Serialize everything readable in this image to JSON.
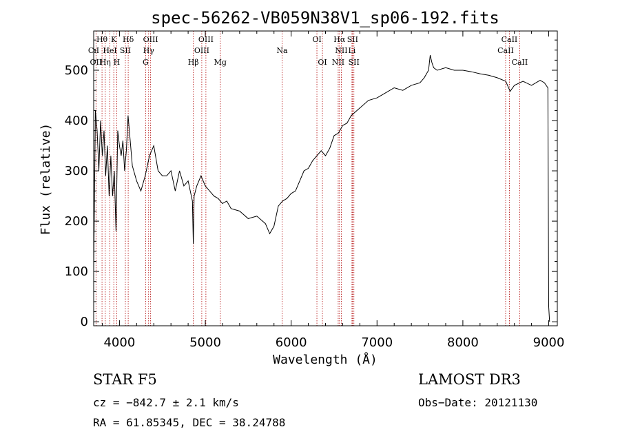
{
  "chart_data": {
    "type": "line",
    "title": "spec-56262-VB059N38V1_sp06-192.fits",
    "xlabel": "Wavelength (Å)",
    "ylabel": "Flux (relative)",
    "xlim": [
      3700,
      9100
    ],
    "ylim": [
      -8,
      578
    ],
    "xticks": [
      4000,
      5000,
      6000,
      7000,
      8000,
      9000
    ],
    "yticks": [
      0,
      100,
      200,
      300,
      400,
      500
    ],
    "series": [
      {
        "name": "spectrum",
        "x": [
          3700,
          3720,
          3740,
          3760,
          3780,
          3800,
          3820,
          3840,
          3860,
          3880,
          3900,
          3920,
          3940,
          3960,
          3980,
          4000,
          4020,
          4040,
          4060,
          4080,
          4100,
          4150,
          4200,
          4250,
          4300,
          4350,
          4400,
          4450,
          4500,
          4550,
          4600,
          4650,
          4700,
          4750,
          4800,
          4850,
          4860,
          4870,
          4900,
          4950,
          5000,
          5050,
          5100,
          5150,
          5200,
          5250,
          5300,
          5400,
          5500,
          5600,
          5700,
          5750,
          5800,
          5850,
          5900,
          5950,
          6000,
          6050,
          6100,
          6150,
          6200,
          6250,
          6300,
          6350,
          6400,
          6450,
          6500,
          6550,
          6600,
          6650,
          6700,
          6800,
          6900,
          7000,
          7100,
          7200,
          7300,
          7400,
          7500,
          7550,
          7600,
          7620,
          7640,
          7660,
          7700,
          7800,
          7900,
          8000,
          8100,
          8200,
          8300,
          8400,
          8500,
          8550,
          8600,
          8700,
          8800,
          8900,
          8950,
          8990,
          9000,
          9010
        ],
        "y": [
          100,
          420,
          380,
          300,
          400,
          330,
          380,
          290,
          350,
          250,
          330,
          250,
          300,
          180,
          380,
          350,
          330,
          360,
          300,
          340,
          410,
          310,
          280,
          260,
          290,
          330,
          350,
          300,
          290,
          290,
          300,
          260,
          300,
          270,
          280,
          240,
          155,
          250,
          270,
          290,
          270,
          260,
          250,
          245,
          235,
          240,
          225,
          220,
          205,
          210,
          195,
          175,
          190,
          230,
          240,
          245,
          255,
          260,
          280,
          300,
          305,
          320,
          330,
          340,
          330,
          345,
          370,
          375,
          390,
          395,
          410,
          425,
          440,
          445,
          455,
          465,
          460,
          470,
          475,
          485,
          500,
          530,
          515,
          505,
          500,
          505,
          500,
          500,
          497,
          493,
          490,
          485,
          478,
          458,
          470,
          478,
          470,
          480,
          475,
          465,
          30,
          0
        ]
      }
    ],
    "line_labels": [
      {
        "text": "CıI",
        "wavelength": 3700,
        "row": 2
      },
      {
        "text": "OII",
        "wavelength": 3727,
        "row": 3
      },
      {
        "text": "Hθ",
        "wavelength": 3797,
        "row": 1
      },
      {
        "text": "Hη",
        "wavelength": 3835,
        "row": 3
      },
      {
        "text": "HeI",
        "wavelength": 3889,
        "row": 2
      },
      {
        "text": "K",
        "wavelength": 3934,
        "row": 1
      },
      {
        "text": "H",
        "wavelength": 3968,
        "row": 3
      },
      {
        "text": "SII",
        "wavelength": 4069,
        "row": 2
      },
      {
        "text": "Hδ",
        "wavelength": 4102,
        "row": 1
      },
      {
        "text": "G",
        "wavelength": 4305,
        "row": 3
      },
      {
        "text": "Hγ",
        "wavelength": 4340,
        "row": 2
      },
      {
        "text": "OIII",
        "wavelength": 4363,
        "row": 1
      },
      {
        "text": "Hβ",
        "wavelength": 4861,
        "row": 3
      },
      {
        "text": "OIII",
        "wavelength": 4959,
        "row": 2
      },
      {
        "text": "OIII",
        "wavelength": 5007,
        "row": 1
      },
      {
        "text": "Mg",
        "wavelength": 5175,
        "row": 3
      },
      {
        "text": "Na",
        "wavelength": 5894,
        "row": 2
      },
      {
        "text": "OI",
        "wavelength": 6300,
        "row": 1
      },
      {
        "text": "OI",
        "wavelength": 6364,
        "row": 3
      },
      {
        "text": "NII",
        "wavelength": 6548,
        "row": 3
      },
      {
        "text": "Hα",
        "wavelength": 6563,
        "row": 1
      },
      {
        "text": "NII",
        "wavelength": 6584,
        "row": 2
      },
      {
        "text": "Li",
        "wavelength": 6708,
        "row": 2
      },
      {
        "text": "SII",
        "wavelength": 6716,
        "row": 1
      },
      {
        "text": "SII",
        "wavelength": 6731,
        "row": 3
      },
      {
        "text": "CaII",
        "wavelength": 8498,
        "row": 2
      },
      {
        "text": "CaII",
        "wavelength": 8542,
        "row": 1
      },
      {
        "text": "CaII",
        "wavelength": 8662,
        "row": 3
      }
    ]
  },
  "info": {
    "class_text": "STAR    F5",
    "survey": "LAMOST DR3",
    "cz": "cz = −842.7 ± 2.1 km/s",
    "obs_date": "Obs−Date: 20121130",
    "coords": "RA =  61.85345, DEC =  38.24788"
  }
}
